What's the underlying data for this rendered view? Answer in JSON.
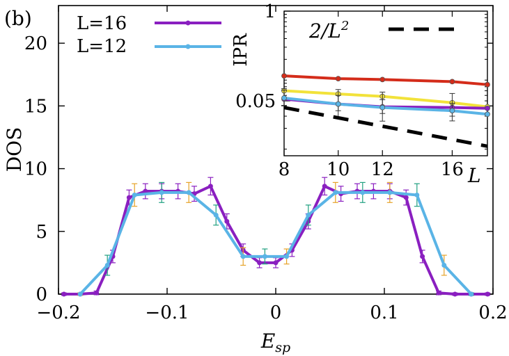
{
  "panel_label": "(b)",
  "chart_data": [
    {
      "id": "main",
      "type": "line",
      "xlabel": "E",
      "xlabel_sub": "sp",
      "ylabel": "DOS",
      "xlim": [
        -0.2,
        0.2
      ],
      "ylim": [
        0,
        23
      ],
      "xticks": [
        -0.2,
        -0.1,
        0,
        0.1,
        0.2
      ],
      "xtick_labels": [
        "−0.2",
        "−0.1",
        "0",
        "0.1",
        "0.2"
      ],
      "yticks": [
        0,
        5,
        10,
        15,
        20
      ],
      "ytick_labels": [
        "0",
        "5",
        "10",
        "15",
        "20"
      ],
      "grid": false,
      "legend_position": "top-left",
      "series": [
        {
          "name": "L=16",
          "color": "#8a1fc0",
          "x": [
            -0.195,
            -0.18,
            -0.165,
            -0.15,
            -0.135,
            -0.12,
            -0.105,
            -0.09,
            -0.075,
            -0.06,
            -0.045,
            -0.03,
            -0.015,
            0.0,
            0.015,
            0.03,
            0.045,
            0.06,
            0.075,
            0.09,
            0.105,
            0.12,
            0.135,
            0.15,
            0.165,
            0.18,
            0.195
          ],
          "y": [
            0.0,
            0.0,
            0.1,
            3.0,
            7.7,
            8.2,
            8.2,
            8.2,
            8.0,
            8.6,
            5.8,
            3.5,
            2.5,
            2.5,
            3.5,
            5.8,
            8.6,
            8.0,
            8.2,
            8.2,
            8.2,
            7.7,
            3.0,
            0.1,
            0.0,
            0.0,
            0.0
          ],
          "err": [
            0.1,
            0.1,
            0.15,
            0.5,
            0.6,
            0.6,
            0.6,
            0.6,
            0.6,
            0.7,
            0.6,
            0.5,
            0.4,
            0.4,
            0.5,
            0.6,
            0.7,
            0.6,
            0.6,
            0.6,
            0.6,
            0.6,
            0.5,
            0.15,
            0.1,
            0.1,
            0.1
          ]
        },
        {
          "name": "L=12",
          "color": "#5ab4e6",
          "x": [
            -0.18,
            -0.155,
            -0.13,
            -0.105,
            -0.08,
            -0.055,
            -0.03,
            -0.01,
            0.01,
            0.03,
            0.055,
            0.08,
            0.105,
            0.13,
            0.155,
            0.18
          ],
          "y": [
            0.0,
            2.3,
            7.9,
            8.1,
            8.1,
            6.3,
            3.0,
            3.0,
            3.0,
            6.3,
            8.1,
            8.1,
            8.1,
            7.9,
            2.3,
            0.0
          ],
          "err": [
            0.1,
            0.8,
            0.9,
            0.8,
            0.8,
            0.8,
            0.7,
            0.6,
            0.6,
            0.8,
            0.8,
            0.8,
            0.8,
            0.9,
            0.8,
            0.1
          ],
          "err_colors": [
            "#e6a227",
            "#20a080"
          ]
        }
      ]
    },
    {
      "id": "inset",
      "type": "line",
      "xlabel": "L",
      "ylabel": "IPR",
      "x_scale": "log",
      "y_scale": "log",
      "xlim": [
        8,
        18.5
      ],
      "ylim": [
        0.008,
        1
      ],
      "xticks": [
        8,
        10,
        12,
        16
      ],
      "xtick_labels": [
        "8",
        "10",
        "12",
        "16"
      ],
      "yticks": [
        0.05,
        1
      ],
      "ytick_labels": [
        "0.05",
        "1"
      ],
      "grid": false,
      "legend_position": "top-right",
      "series": [
        {
          "name": "",
          "color": "#d42c1a",
          "x": [
            8,
            10,
            12,
            16,
            18.5
          ],
          "y": [
            0.115,
            0.105,
            0.102,
            0.095,
            0.086
          ],
          "err": [
            0,
            0,
            0,
            0,
            0
          ]
        },
        {
          "name": "",
          "color": "#f2e23a",
          "x": [
            8,
            10,
            12,
            16,
            18.5
          ],
          "y": [
            0.07,
            0.063,
            0.058,
            0.047,
            0.041
          ],
          "err": [
            0,
            0,
            0,
            0,
            0
          ]
        },
        {
          "name": "",
          "color": "#8a1fc0",
          "x": [
            8,
            10,
            12,
            16,
            18.5
          ],
          "y": [
            0.053,
            0.045,
            0.041,
            0.04,
            0.039
          ],
          "err": [
            0.018,
            0.028,
            0.026,
            0.024,
            0
          ]
        },
        {
          "name": "",
          "color": "#5ab4e6",
          "x": [
            8,
            10,
            12,
            16,
            18.5
          ],
          "y": [
            0.055,
            0.045,
            0.04,
            0.036,
            0.032
          ],
          "err": [
            0.02,
            0.015,
            0.012,
            0.01,
            0
          ]
        },
        {
          "name": "2/L^2",
          "color": "#000000",
          "dashed": true,
          "x": [
            8,
            18.5
          ],
          "y": [
            0.04,
            0.011
          ]
        }
      ],
      "legend_label": "2/L",
      "legend_label_sup": "2"
    }
  ]
}
